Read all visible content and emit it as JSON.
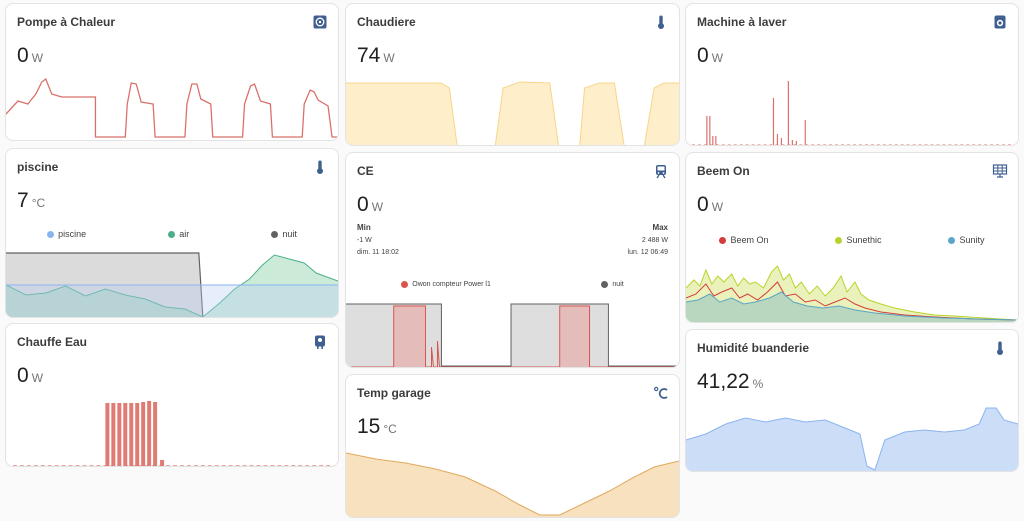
{
  "colors": {
    "accent_blue": "#3f5f8f",
    "red_line": "#d9706a",
    "yellow_fill": "#fde9b8",
    "green_fill": "#8fd0a8",
    "gray_fill": "#bdbdbd",
    "orange_fill": "#f3c88a",
    "blue_fill": "#b6cff5",
    "lime": "#c7d83a",
    "sunity_blue": "#5aa6c7"
  },
  "cards": {
    "pompe": {
      "title": "Pompe à Chaleur",
      "value": "0",
      "unit": "W",
      "icon": "heat-pump-icon"
    },
    "chaudiere": {
      "title": "Chaudiere",
      "value": "74",
      "unit": "W",
      "icon": "thermometer-icon"
    },
    "machine": {
      "title": "Machine à laver",
      "value": "0",
      "unit": "W",
      "icon": "washing-machine-icon"
    },
    "piscine": {
      "title": "piscine",
      "value": "7",
      "unit": "°C",
      "icon": "thermometer-icon",
      "legend": [
        {
          "label": "piscine",
          "color": "#8ab4f0"
        },
        {
          "label": "air",
          "color": "#4caf8a"
        },
        {
          "label": "nuit",
          "color": "#616161"
        }
      ]
    },
    "ce": {
      "title": "CE",
      "value": "0",
      "unit": "W",
      "icon": "tram-icon",
      "stats": {
        "min_label": "Min",
        "min_value": "-1 W",
        "min_date": "dim. 11 18:02",
        "max_label": "Max",
        "max_value": "2 488 W",
        "max_date": "lun. 12 06:49"
      },
      "legend": [
        {
          "label": "Owon compteur Power l1",
          "color": "#d9534f"
        },
        {
          "label": "nuit",
          "color": "#616161"
        }
      ]
    },
    "beem": {
      "title": "Beem On",
      "value": "0",
      "unit": "W",
      "icon": "solar-panel-icon",
      "legend": [
        {
          "label": "Beem On",
          "color": "#d23c3c"
        },
        {
          "label": "Sunethic",
          "color": "#b8d42c"
        },
        {
          "label": "Sunity",
          "color": "#5aa6c7"
        }
      ]
    },
    "chauffe": {
      "title": "Chauffe Eau",
      "value": "0",
      "unit": "W",
      "icon": "water-boiler-icon"
    },
    "garage": {
      "title": "Temp garage",
      "value": "15",
      "unit": "°C",
      "icon": "celsius-icon"
    },
    "humidite": {
      "title": "Humidité buanderie",
      "value": "41,22",
      "unit": "%",
      "icon": "thermometer-icon"
    }
  }
}
